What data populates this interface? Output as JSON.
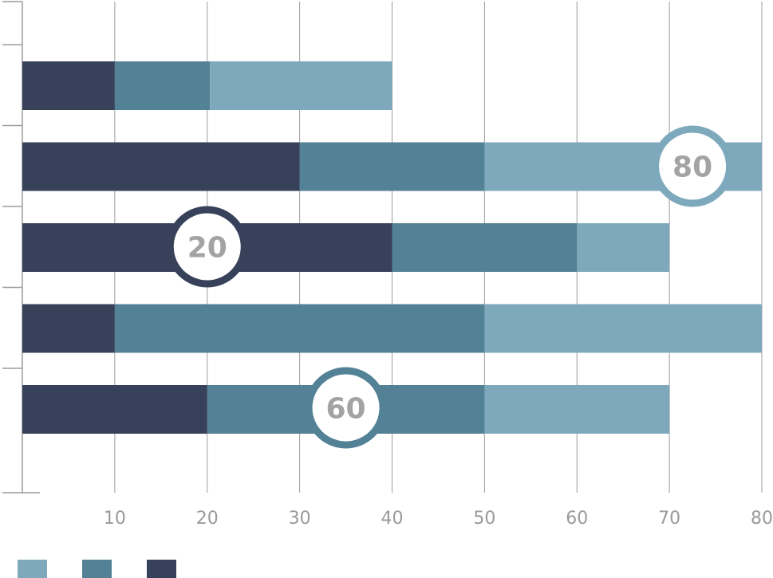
{
  "chart_data": {
    "type": "bar",
    "orientation": "horizontal",
    "stacked": true,
    "title": "",
    "xlabel": "",
    "ylabel": "",
    "xlim": [
      0,
      80
    ],
    "x_ticks": [
      10,
      20,
      30,
      40,
      50,
      60,
      70,
      80
    ],
    "tick_labels": [
      "10",
      "20",
      "30",
      "40",
      "50",
      "60",
      "70",
      "80"
    ],
    "grid": "vertical",
    "legend": "bottom-left",
    "categories": [
      "",
      "",
      "",
      "",
      ""
    ],
    "series": [
      {
        "color": "#37415a",
        "values": [
          10,
          30,
          40,
          10,
          20
        ]
      },
      {
        "color": "#538296",
        "values": [
          10.3,
          20,
          20,
          40,
          30
        ]
      },
      {
        "color": "#7ea9bd",
        "values": [
          19.7,
          30,
          10,
          30,
          20
        ]
      }
    ],
    "legend_entries": [
      {
        "color": "#7ea9bd"
      },
      {
        "color": "#538296"
      },
      {
        "color": "#37415a"
      }
    ],
    "annotations": [
      {
        "text": "80",
        "bar_index": 1,
        "x": 72.5,
        "ring_color": "#7ea9bd"
      },
      {
        "text": "20",
        "bar_index": 2,
        "x": 20,
        "ring_color": "#37415a"
      },
      {
        "text": "60",
        "bar_index": 4,
        "x": 35,
        "ring_color": "#538296"
      }
    ]
  }
}
